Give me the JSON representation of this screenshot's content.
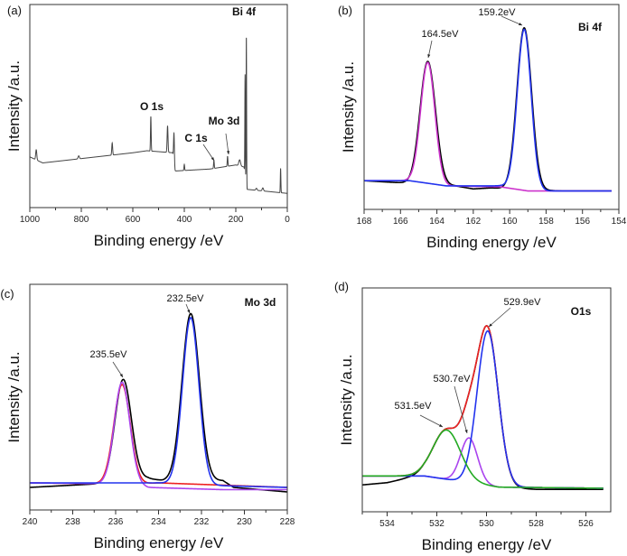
{
  "chart_data": [
    {
      "type": "line",
      "panel_label": "(a)",
      "xlabel": "Binding energy /eV",
      "ylabel": "Intensity /a.u.",
      "xlim": [
        1000,
        0
      ],
      "x_reversed": true,
      "xticks": [
        "1000",
        "800",
        "600",
        "400",
        "200",
        "0"
      ],
      "ylim": [
        0,
        1
      ],
      "yticks_shown": false,
      "grid": false,
      "annotations": [
        {
          "text": "Bi 4f",
          "x": 160
        },
        {
          "text": "O 1s",
          "x": 530
        },
        {
          "text": "C 1s",
          "x": 285
        },
        {
          "text": "Mo 3d",
          "x": 232
        }
      ],
      "series": [
        {
          "color": "#444444",
          "baseline": [
            [
              1000,
              0.25
            ],
            [
              950,
              0.22
            ],
            [
              600,
              0.27
            ],
            [
              545,
              0.28
            ],
            [
              445,
              0.27
            ],
            [
              438,
              0.18
            ],
            [
              300,
              0.19
            ],
            [
              200,
              0.21
            ],
            [
              168,
              0.2
            ],
            [
              158,
              0.09
            ],
            [
              0,
              0.07
            ]
          ],
          "peaks": [
            [
              975,
              0.05,
              5
            ],
            [
              810,
              0.015,
              6
            ],
            [
              680,
              0.06,
              4
            ],
            [
              530,
              0.17,
              3
            ],
            [
              465,
              0.13,
              4
            ],
            [
              440,
              0.16,
              4
            ],
            [
              400,
              0.03,
              3
            ],
            [
              285,
              0.04,
              3
            ],
            [
              232,
              0.05,
              3
            ],
            [
              185,
              0.03,
              8
            ],
            [
              164,
              0.5,
              2.2
            ],
            [
              159,
              0.75,
              2.2
            ],
            [
              120,
              0.01,
              6
            ],
            [
              95,
              0.015,
              6
            ],
            [
              26,
              0.12,
              2.5
            ]
          ]
        }
      ]
    },
    {
      "type": "line",
      "panel_label": "(b)",
      "xlabel": "Binding energy /eV",
      "ylabel": "Intensity /a.u.",
      "xlim": [
        168,
        154
      ],
      "x_reversed": true,
      "xticks": [
        "168",
        "166",
        "164",
        "162",
        "160",
        "158",
        "156",
        "154"
      ],
      "ylim": [
        0,
        1
      ],
      "yticks_shown": false,
      "grid": false,
      "title_tag": "Bi 4f",
      "annotations": [
        {
          "text": "164.5eV",
          "x": 164.5
        },
        {
          "text": "159.2eV",
          "x": 159.2
        }
      ],
      "series": [
        {
          "color": "#000000",
          "baseline": [
            [
              168,
              0.14
            ],
            [
              166,
              0.13
            ],
            [
              163,
              0.115
            ],
            [
              162,
              0.1
            ],
            [
              161,
              0.105
            ],
            [
              159,
              0.095
            ],
            [
              157,
              0.09
            ],
            [
              154.4,
              0.09
            ]
          ],
          "peaks": [
            [
              164.5,
              0.6,
              1.0
            ],
            [
              159.2,
              0.79,
              0.95
            ]
          ]
        },
        {
          "color": "#cc33cc",
          "baseline": [
            [
              168,
              0.14
            ],
            [
              165.5,
              0.14
            ],
            [
              163.5,
              0.115
            ],
            [
              160.5,
              0.11
            ],
            [
              159,
              0.09
            ],
            [
              154.4,
              0.09
            ]
          ],
          "peaks": [
            [
              164.5,
              0.59,
              0.92
            ]
          ]
        },
        {
          "color": "#2233ee",
          "baseline": [
            [
              168,
              0.14
            ],
            [
              165.5,
              0.14
            ],
            [
              163.5,
              0.115
            ],
            [
              160.5,
              0.115
            ],
            [
              158.5,
              0.09
            ],
            [
              154.4,
              0.09
            ]
          ],
          "peaks": [
            [
              159.2,
              0.78,
              0.9
            ]
          ]
        }
      ]
    },
    {
      "type": "line",
      "panel_label": "(c)",
      "xlabel": "Binding energy /eV",
      "ylabel": "Intensity /a.u.",
      "xlim": [
        240,
        228
      ],
      "x_reversed": true,
      "xticks": [
        "240",
        "238",
        "236",
        "234",
        "232",
        "230",
        "228"
      ],
      "ylim": [
        0,
        1
      ],
      "yticks_shown": false,
      "grid": false,
      "title_tag": "Mo 3d",
      "annotations": [
        {
          "text": "235.5eV",
          "x": 235.7
        },
        {
          "text": "232.5eV",
          "x": 232.5
        }
      ],
      "series": [
        {
          "color": "#000000",
          "baseline": [
            [
              240,
              0.1
            ],
            [
              237,
              0.115
            ],
            [
              234.5,
              0.14
            ],
            [
              233.8,
              0.13
            ],
            [
              231,
              0.13
            ],
            [
              230.5,
              0.1
            ],
            [
              228,
              0.08
            ]
          ],
          "peaks": [
            [
              235.65,
              0.45,
              0.9
            ],
            [
              232.5,
              0.74,
              0.95
            ]
          ]
        },
        {
          "color": "#ee2222",
          "baseline": [
            [
              240,
              0.12
            ],
            [
              235,
              0.115
            ],
            [
              234,
              0.12
            ],
            [
              228,
              0.1
            ]
          ],
          "peaks": [
            [
              235.7,
              0.44,
              0.9
            ]
          ]
        },
        {
          "color": "#aa44ee",
          "baseline": [
            [
              240,
              0.12
            ],
            [
              235,
              0.115
            ],
            [
              234.5,
              0.1
            ],
            [
              231,
              0.09
            ],
            [
              228,
              0.09
            ]
          ],
          "peaks": [
            [
              235.7,
              0.45,
              0.85
            ]
          ]
        },
        {
          "color": "#2233ee",
          "baseline": [
            [
              240,
              0.12
            ],
            [
              234,
              0.12
            ],
            [
              232,
              0.11
            ],
            [
              228,
              0.1
            ]
          ],
          "peaks": [
            [
              232.5,
              0.74,
              0.9
            ]
          ]
        }
      ]
    },
    {
      "type": "line",
      "panel_label": "(d)",
      "xlabel": "Binding energy /eV",
      "ylabel": "Intensity /a.u.",
      "xlim": [
        535,
        525
      ],
      "x_reversed": true,
      "xticks": [
        "534",
        "532",
        "530",
        "528",
        "526"
      ],
      "ylim": [
        0,
        1
      ],
      "yticks_shown": false,
      "grid": false,
      "title_tag": "O1s",
      "annotations": [
        {
          "text": "529.9eV",
          "x": 529.9
        },
        {
          "text": "530.7eV",
          "x": 530.7
        },
        {
          "text": "531.5eV",
          "x": 531.5
        }
      ],
      "series": [
        {
          "color": "#000000",
          "baseline": [
            [
              535,
              0.12
            ],
            [
              534,
              0.13
            ],
            [
              533.2,
              0.15
            ],
            [
              532.5,
              0.16
            ],
            [
              529.5,
              0.11
            ],
            [
              528,
              0.1
            ],
            [
              525.3,
              0.1
            ]
          ],
          "peaks": [
            [
              529.95,
              0.69,
              1.0
            ],
            [
              530.7,
              0.2,
              0.8
            ],
            [
              531.6,
              0.22,
              1.3
            ]
          ]
        },
        {
          "color": "#ee2222",
          "baseline": [
            [
              535,
              0.16
            ],
            [
              532.5,
              0.16
            ],
            [
              529.5,
              0.11
            ],
            [
              525.3,
              0.105
            ]
          ],
          "peaks": [
            [
              529.95,
              0.69,
              1.0
            ],
            [
              530.7,
              0.2,
              0.8
            ],
            [
              531.6,
              0.22,
              1.3
            ]
          ]
        },
        {
          "color": "#aa44ee",
          "baseline": [
            [
              535,
              0.16
            ],
            [
              532.5,
              0.16
            ],
            [
              529.5,
              0.11
            ],
            [
              525.3,
              0.105
            ]
          ],
          "peaks": [
            [
              530.7,
              0.2,
              0.8
            ]
          ]
        },
        {
          "color": "#2233ee",
          "baseline": [
            [
              535,
              0.16
            ],
            [
              532.5,
              0.16
            ],
            [
              529.5,
              0.11
            ],
            [
              525.3,
              0.105
            ]
          ],
          "peaks": [
            [
              529.95,
              0.69,
              1.0
            ]
          ]
        },
        {
          "color": "#22aa22",
          "baseline": [
            [
              535,
              0.16
            ],
            [
              532.5,
              0.16
            ],
            [
              529.5,
              0.11
            ],
            [
              525.3,
              0.105
            ]
          ],
          "peaks": [
            [
              531.6,
              0.22,
              1.3
            ]
          ]
        }
      ]
    }
  ]
}
